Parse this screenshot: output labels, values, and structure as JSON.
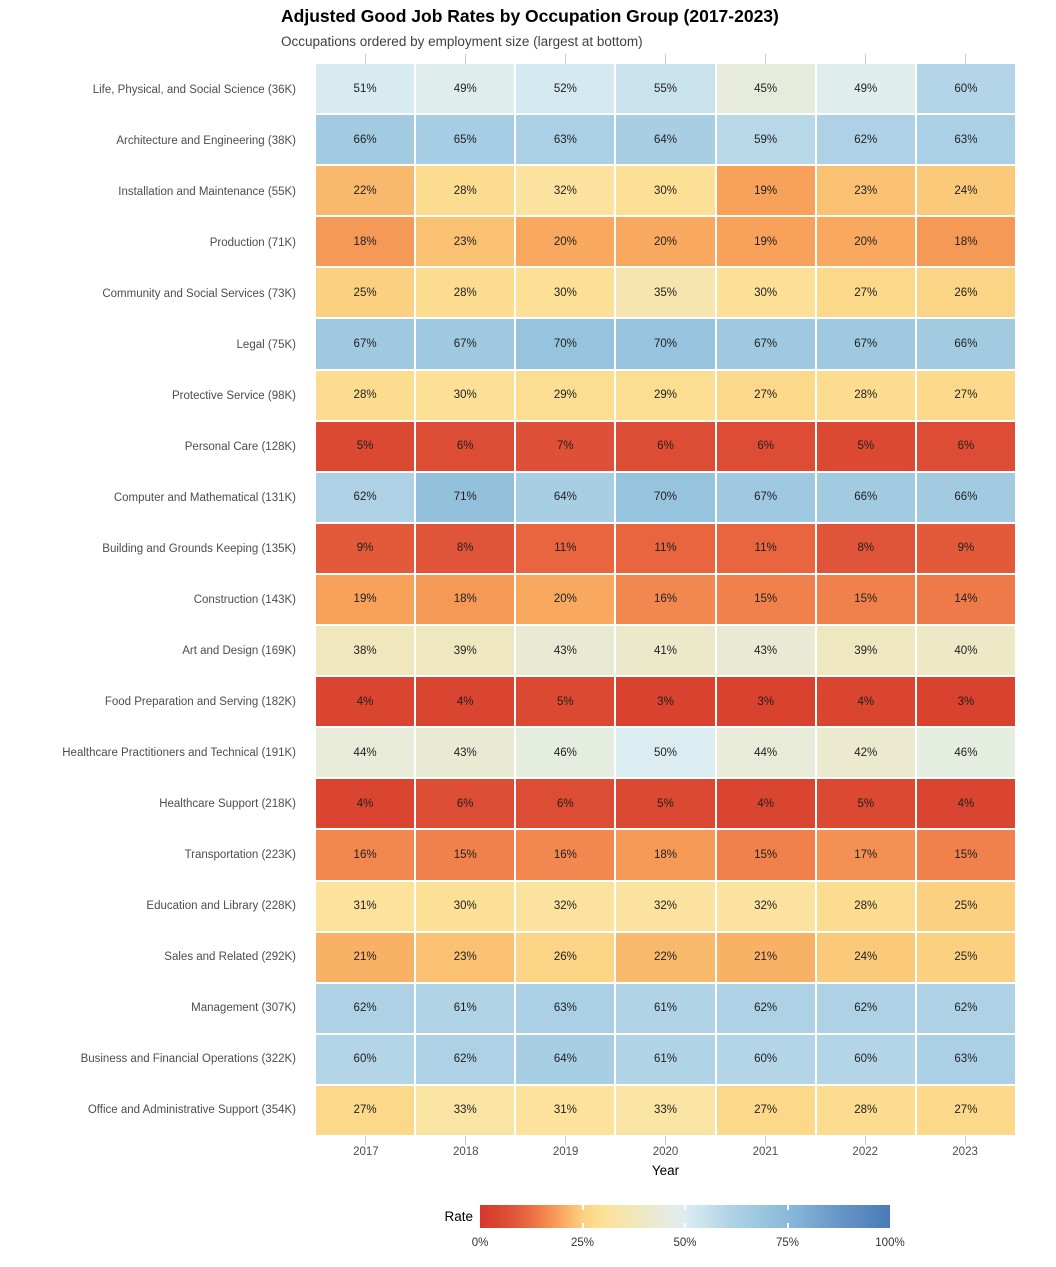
{
  "title": "Adjusted Good Job Rates by Occupation Group (2017-2023)",
  "subtitle": "Occupations ordered by employment size (largest at bottom)",
  "chart_data": {
    "type": "heatmap",
    "x": [
      "2017",
      "2018",
      "2019",
      "2020",
      "2021",
      "2022",
      "2023"
    ],
    "xlabel": "Year",
    "value_unit": "%",
    "value_range": [
      0,
      100
    ],
    "rows": [
      {
        "label": "Life, Physical, and Social Science (36K)",
        "values": [
          51,
          49,
          52,
          55,
          45,
          49,
          60
        ]
      },
      {
        "label": "Architecture and Engineering (38K)",
        "values": [
          66,
          65,
          63,
          64,
          59,
          62,
          63
        ]
      },
      {
        "label": "Installation and Maintenance (55K)",
        "values": [
          22,
          28,
          32,
          30,
          19,
          23,
          24
        ]
      },
      {
        "label": "Production (71K)",
        "values": [
          18,
          23,
          20,
          20,
          19,
          20,
          18
        ]
      },
      {
        "label": "Community and Social Services (73K)",
        "values": [
          25,
          28,
          30,
          35,
          30,
          27,
          26
        ]
      },
      {
        "label": "Legal (75K)",
        "values": [
          67,
          67,
          70,
          70,
          67,
          67,
          66
        ]
      },
      {
        "label": "Protective Service (98K)",
        "values": [
          28,
          30,
          29,
          29,
          27,
          28,
          27
        ]
      },
      {
        "label": "Personal Care (128K)",
        "values": [
          5,
          6,
          7,
          6,
          6,
          5,
          6
        ]
      },
      {
        "label": "Computer and Mathematical (131K)",
        "values": [
          62,
          71,
          64,
          70,
          67,
          66,
          66
        ]
      },
      {
        "label": "Building and Grounds Keeping (135K)",
        "values": [
          9,
          8,
          11,
          11,
          11,
          8,
          9
        ]
      },
      {
        "label": "Construction (143K)",
        "values": [
          19,
          18,
          20,
          16,
          15,
          15,
          14
        ]
      },
      {
        "label": "Art and Design (169K)",
        "values": [
          38,
          39,
          43,
          41,
          43,
          39,
          40
        ]
      },
      {
        "label": "Food Preparation and Serving (182K)",
        "values": [
          4,
          4,
          5,
          3,
          3,
          4,
          3
        ]
      },
      {
        "label": "Healthcare Practitioners and Technical (191K)",
        "values": [
          44,
          43,
          46,
          50,
          44,
          42,
          46
        ]
      },
      {
        "label": "Healthcare Support (218K)",
        "values": [
          4,
          6,
          6,
          5,
          4,
          5,
          4
        ]
      },
      {
        "label": "Transportation (223K)",
        "values": [
          16,
          15,
          16,
          18,
          15,
          17,
          15
        ]
      },
      {
        "label": "Education and Library (228K)",
        "values": [
          31,
          30,
          32,
          32,
          32,
          28,
          25
        ]
      },
      {
        "label": "Sales and Related (292K)",
        "values": [
          21,
          23,
          26,
          22,
          21,
          24,
          25
        ]
      },
      {
        "label": "Management (307K)",
        "values": [
          62,
          61,
          63,
          61,
          62,
          62,
          62
        ]
      },
      {
        "label": "Business and Financial Operations (322K)",
        "values": [
          60,
          62,
          64,
          61,
          60,
          60,
          63
        ]
      },
      {
        "label": "Office and Administrative Support (354K)",
        "values": [
          27,
          33,
          31,
          33,
          27,
          28,
          27
        ]
      }
    ],
    "legend": {
      "title": "Rate",
      "ticks": [
        "0%",
        "25%",
        "50%",
        "75%",
        "100%"
      ],
      "tick_positions": [
        0,
        0.25,
        0.5,
        0.75,
        1
      ],
      "position": "bottom"
    },
    "colorscale": [
      [
        0.0,
        "#d6382b"
      ],
      [
        0.04,
        "#d94530"
      ],
      [
        0.08,
        "#e05439"
      ],
      [
        0.12,
        "#ea6a42"
      ],
      [
        0.16,
        "#f2884f"
      ],
      [
        0.2,
        "#f8a95f"
      ],
      [
        0.25,
        "#fbd181"
      ],
      [
        0.28,
        "#fcdc8e"
      ],
      [
        0.31,
        "#fce29a"
      ],
      [
        0.35,
        "#f6e5ae"
      ],
      [
        0.4,
        "#ede8c5"
      ],
      [
        0.44,
        "#e8ebd8"
      ],
      [
        0.47,
        "#e4ece4"
      ],
      [
        0.5,
        "#dcedf2"
      ],
      [
        0.55,
        "#c9e2ec"
      ],
      [
        0.6,
        "#b4d4e7"
      ],
      [
        0.66,
        "#a2cbe2"
      ],
      [
        0.71,
        "#93c1dc"
      ],
      [
        0.75,
        "#8abada"
      ],
      [
        0.85,
        "#6d9dca"
      ],
      [
        1.0,
        "#4a7ab8"
      ]
    ]
  }
}
